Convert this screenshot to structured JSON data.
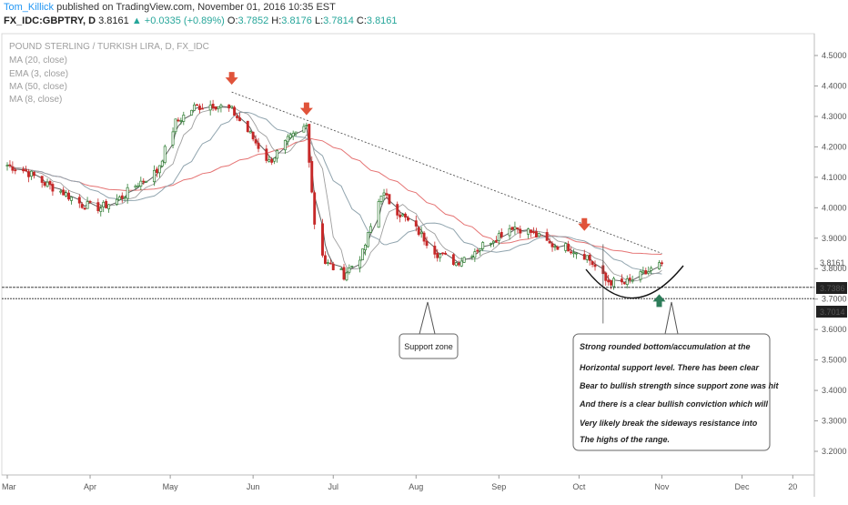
{
  "header": {
    "author": "Tom_Killick",
    "published_text": "published on TradingView.com, November 01, 2016 10:35 EST",
    "symbol": "FX_IDC:GBPTRY, D",
    "price": "3.8161",
    "up_arrow": "▲",
    "change": "+0.0335 (+0.89%)",
    "o_label": "O:",
    "o_value": "3.7852",
    "h_label": "H:",
    "h_value": "3.8176",
    "l_label": "L:",
    "l_value": "3.7814",
    "c_label": "C:",
    "c_value": "3.8161"
  },
  "legend": {
    "title": "POUND STERLING / TURKISH LIRA, D, FX_IDC",
    "studies": [
      "MA (20, close)",
      "EMA (3, close)",
      "MA (50, close)",
      "MA (8, close)"
    ]
  },
  "price_axis": {
    "ticks": [
      "4.5000",
      "4.4000",
      "4.3000",
      "4.2000",
      "4.1000",
      "4.0000",
      "3.9000",
      "3.8000",
      "3.7000",
      "3.6000",
      "3.5000",
      "3.4000",
      "3.3000",
      "3.2000"
    ],
    "current_label": "3.8161",
    "level1_label": "3.7386",
    "level2_label": "3.7014"
  },
  "time_axis": {
    "labels": [
      "Mar",
      "Apr",
      "May",
      "Jun",
      "Jul",
      "Aug",
      "Sep",
      "Oct",
      "Nov",
      "Dec",
      "20"
    ]
  },
  "annotations": {
    "support_zone": "Support zone",
    "note_lines": [
      "Strong rounded bottom/accumulation at the",
      "Horizontal support level. There has been clear",
      "Bear to bullish strength since support zone was hit",
      "And there is a clear bullish conviction which will",
      "Very likely break the sideways resistance into",
      "The highs of the range."
    ]
  },
  "colors": {
    "up": "#2e7d32",
    "down": "#c62828",
    "ma20": "#90a4ae",
    "ema3": "#616161",
    "ma50": "#e57373",
    "ma8": "#9e9e9e",
    "arrow_down": "#e0533a",
    "arrow_up": "#2e7d5a"
  },
  "chart_data": {
    "type": "candlestick",
    "title": "POUND STERLING / TURKISH LIRA, D, FX_IDC",
    "x_range": [
      "2016-03-01",
      "2016-12-25"
    ],
    "ylim": [
      3.1,
      4.55
    ],
    "horizontal_levels": [
      3.7386,
      3.7014
    ],
    "trendline": {
      "from": [
        "2016-05-24",
        4.38
      ],
      "to": [
        "2016-11-01",
        3.85
      ]
    },
    "series": [
      {
        "name": "GBPTRY",
        "description": "approximate daily closes",
        "x": [
          "2016-03-01",
          "2016-03-08",
          "2016-03-15",
          "2016-03-22",
          "2016-03-29",
          "2016-04-05",
          "2016-04-12",
          "2016-04-19",
          "2016-04-26",
          "2016-05-03",
          "2016-05-10",
          "2016-05-17",
          "2016-05-24",
          "2016-05-31",
          "2016-06-07",
          "2016-06-14",
          "2016-06-21",
          "2016-06-24",
          "2016-06-28",
          "2016-07-05",
          "2016-07-12",
          "2016-07-19",
          "2016-07-26",
          "2016-08-02",
          "2016-08-09",
          "2016-08-16",
          "2016-08-23",
          "2016-08-30",
          "2016-09-06",
          "2016-09-13",
          "2016-09-20",
          "2016-09-27",
          "2016-10-04",
          "2016-10-11",
          "2016-10-18",
          "2016-10-25",
          "2016-11-01"
        ],
        "values": [
          4.14,
          4.12,
          4.08,
          4.05,
          4.01,
          4.0,
          4.03,
          4.08,
          4.12,
          4.28,
          4.33,
          4.34,
          4.32,
          4.24,
          4.15,
          4.22,
          4.27,
          3.95,
          3.82,
          3.78,
          3.85,
          4.05,
          3.98,
          3.92,
          3.85,
          3.82,
          3.86,
          3.9,
          3.94,
          3.92,
          3.88,
          3.87,
          3.84,
          3.76,
          3.75,
          3.78,
          3.8161
        ]
      }
    ],
    "markers": [
      {
        "type": "arrow-down",
        "x": "2016-05-24",
        "y": 4.41
      },
      {
        "type": "arrow-down",
        "x": "2016-06-21",
        "y": 4.31
      },
      {
        "type": "arrow-down",
        "x": "2016-10-03",
        "y": 3.93
      },
      {
        "type": "arrow-up",
        "x": "2016-10-31",
        "y": 3.71
      }
    ]
  }
}
